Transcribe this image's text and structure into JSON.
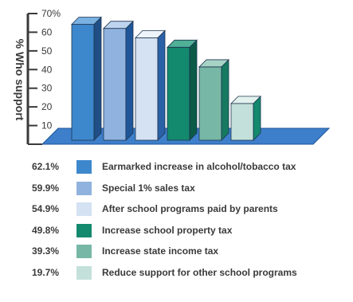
{
  "chart_data": {
    "type": "bar",
    "ylabel": "% Who support",
    "ylim": [
      0,
      70
    ],
    "yticks": [
      10,
      20,
      30,
      40,
      50,
      60,
      70
    ],
    "ytick_labels": [
      "10",
      "20",
      "30",
      "40",
      "50",
      "60",
      "70%"
    ],
    "grid": false,
    "three_d": true,
    "legend_position": "below",
    "categories": [
      "Earmarked increase in alcohol/tobacco tax",
      "Special 1% sales tax",
      "After school programs paid by parents",
      "Increase school property tax",
      "Increase state income tax",
      "Reduce support for other school programs"
    ],
    "values": [
      62.1,
      59.9,
      54.9,
      49.8,
      39.3,
      19.7
    ],
    "value_labels": [
      "62.1%",
      "59.9%",
      "54.9%",
      "49.8%",
      "39.3%",
      "19.7%"
    ],
    "colors": [
      {
        "front": "#3d87cc",
        "side": "#1f4f86",
        "top": "#79b1e2"
      },
      {
        "front": "#8fb2de",
        "side": "#1f5699",
        "top": "#bdd3ee"
      },
      {
        "front": "#d4e2f3",
        "side": "#2a60a6",
        "top": "#eef4fb"
      },
      {
        "front": "#13896e",
        "side": "#0b5a47",
        "top": "#4fb096"
      },
      {
        "front": "#77b7a5",
        "side": "#157a60",
        "top": "#a7d3c6"
      },
      {
        "front": "#c3e1da",
        "side": "#13896e",
        "top": "#e2f1ed"
      }
    ],
    "floor_color": "#3d7fca",
    "floor_edge": "#1f5699"
  }
}
